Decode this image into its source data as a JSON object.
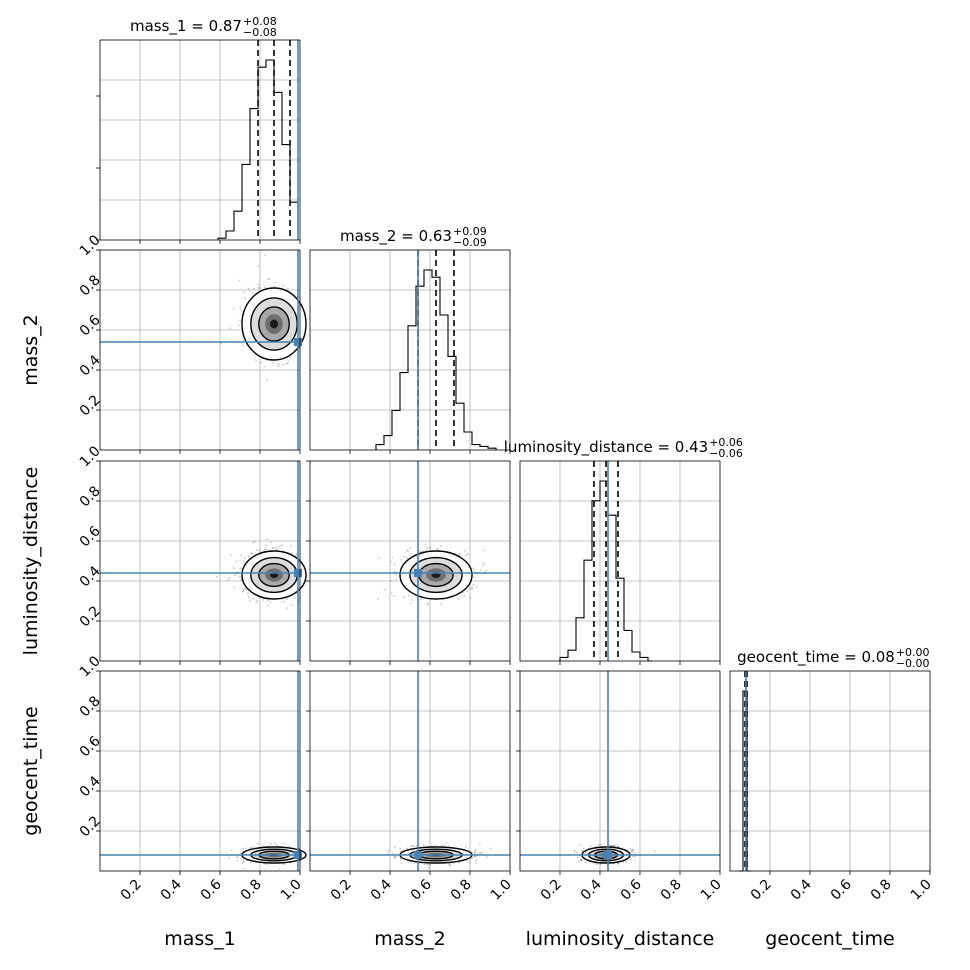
{
  "figure": {
    "type": "corner-plot",
    "truth_color": "#4682b4"
  },
  "chart_data": {
    "type": "corner",
    "parameters": [
      "mass_1",
      "mass_2",
      "luminosity_distance",
      "geocent_time"
    ],
    "axis_labels": [
      "mass_1",
      "mass_2",
      "luminosity_distance",
      "geocent_time"
    ],
    "titles": [
      {
        "name": "mass_1",
        "median": "0.87",
        "plus": "+0.08",
        "minus": "−0.08"
      },
      {
        "name": "mass_2",
        "median": "0.63",
        "plus": "+0.09",
        "minus": "−0.09"
      },
      {
        "name": "luminosity_distance",
        "median": "0.43",
        "plus": "+0.06",
        "minus": "−0.06"
      },
      {
        "name": "geocent_time",
        "median": "0.08",
        "plus": "+0.00",
        "minus": "−0.00"
      }
    ],
    "xlim": [
      0,
      1
    ],
    "ylim": [
      0,
      1
    ],
    "tick_labels": [
      "0.2",
      "0.4",
      "0.6",
      "0.8",
      "1.0"
    ],
    "truths": [
      0.99,
      0.54,
      0.44,
      0.08
    ],
    "quantiles": [
      [
        0.79,
        0.87,
        0.95
      ],
      [
        0.54,
        0.63,
        0.72
      ],
      [
        0.37,
        0.43,
        0.49
      ],
      [
        0.075,
        0.08,
        0.085
      ]
    ],
    "histograms": [
      {
        "bin_edges": [
          0.59,
          0.63,
          0.67,
          0.71,
          0.75,
          0.79,
          0.83,
          0.87,
          0.91,
          0.95,
          0.99
        ],
        "counts": [
          0.01,
          0.05,
          0.16,
          0.42,
          0.73,
          0.96,
          1.0,
          0.82,
          0.53,
          0.21
        ]
      },
      {
        "bin_edges": [
          0.33,
          0.37,
          0.41,
          0.45,
          0.49,
          0.53,
          0.57,
          0.61,
          0.65,
          0.69,
          0.73,
          0.77,
          0.81,
          0.85,
          0.89,
          0.93
        ],
        "counts": [
          0.03,
          0.08,
          0.22,
          0.43,
          0.69,
          0.91,
          1.0,
          0.96,
          0.75,
          0.52,
          0.26,
          0.1,
          0.03,
          0.02,
          0.01
        ]
      },
      {
        "bin_edges": [
          0.2,
          0.24,
          0.28,
          0.32,
          0.36,
          0.4,
          0.44,
          0.48,
          0.52,
          0.56,
          0.6,
          0.64,
          0.66
        ],
        "counts": [
          0.02,
          0.06,
          0.24,
          0.56,
          0.89,
          1.0,
          0.81,
          0.46,
          0.17,
          0.05,
          0.02,
          0.0
        ]
      },
      {
        "bin_edges": [
          0.045,
          0.065,
          0.085,
          0.105
        ],
        "counts": [
          0.0,
          1.0,
          0.0
        ]
      }
    ],
    "pair_means": [
      {
        "row": 1,
        "col": 0,
        "mx": 0.87,
        "my": 0.63,
        "sx": 0.08,
        "sy": 0.09
      },
      {
        "row": 2,
        "col": 0,
        "mx": 0.87,
        "my": 0.43,
        "sx": 0.08,
        "sy": 0.06
      },
      {
        "row": 2,
        "col": 1,
        "mx": 0.63,
        "my": 0.43,
        "sx": 0.09,
        "sy": 0.06
      },
      {
        "row": 3,
        "col": 0,
        "mx": 0.87,
        "my": 0.08,
        "sx": 0.08,
        "sy": 0.004
      },
      {
        "row": 3,
        "col": 1,
        "mx": 0.63,
        "my": 0.08,
        "sx": 0.09,
        "sy": 0.004
      },
      {
        "row": 3,
        "col": 2,
        "mx": 0.43,
        "my": 0.08,
        "sx": 0.06,
        "sy": 0.004
      }
    ],
    "grid": true,
    "legend": "none"
  }
}
